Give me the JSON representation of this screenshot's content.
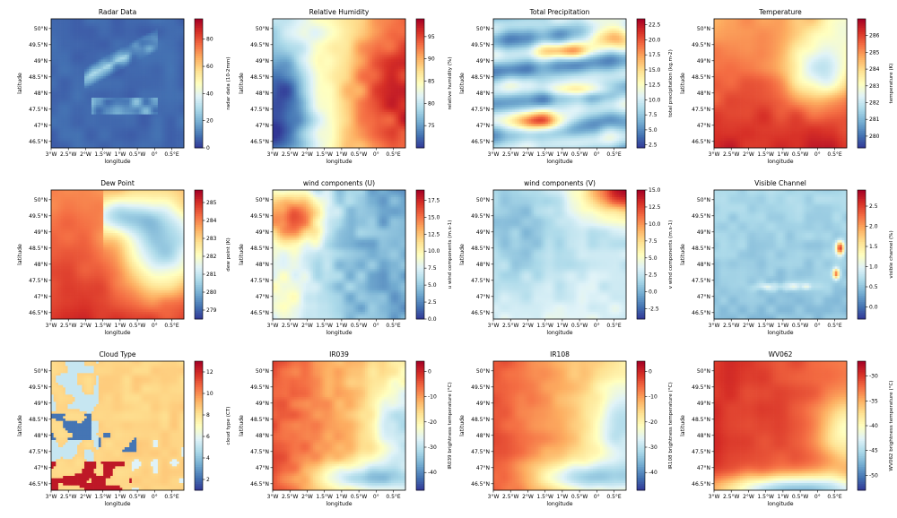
{
  "chart_data": [
    {
      "type": "heatmap",
      "title": "Radar Data",
      "colorbar_label": "radar data (10-2mm)",
      "colorbar_ticks": [
        "0",
        "20",
        "40",
        "60",
        "80"
      ],
      "colorbar_range": [
        0,
        95
      ],
      "pattern": "radar"
    },
    {
      "type": "heatmap",
      "title": "Relative Humidity",
      "colorbar_label": "relative humidity (%)",
      "colorbar_ticks": [
        "75",
        "80",
        "85",
        "90",
        "95"
      ],
      "colorbar_range": [
        70,
        99
      ],
      "pattern": "rh"
    },
    {
      "type": "heatmap",
      "title": "Total Precipitation",
      "colorbar_label": "total precipitation (kg.m-2)",
      "colorbar_ticks": [
        "2.5",
        "5.0",
        "7.5",
        "10.0",
        "12.5",
        "15.0",
        "17.5",
        "20.0",
        "22.5"
      ],
      "colorbar_range": [
        2,
        23.5
      ],
      "pattern": "precip"
    },
    {
      "type": "heatmap",
      "title": "Temperature",
      "colorbar_label": "temperature (K)",
      "colorbar_ticks": [
        "280",
        "281",
        "282",
        "283",
        "284",
        "285",
        "286"
      ],
      "colorbar_range": [
        279.3,
        287
      ],
      "pattern": "temp"
    },
    {
      "type": "heatmap",
      "title": "Dew Point",
      "colorbar_label": "dew point (K)",
      "colorbar_ticks": [
        "279",
        "280",
        "281",
        "282",
        "283",
        "284",
        "285"
      ],
      "colorbar_range": [
        278.5,
        285.7
      ],
      "pattern": "dew"
    },
    {
      "type": "heatmap",
      "title": "wind components (U)",
      "colorbar_label": "u wind components (m.s-1)",
      "colorbar_ticks": [
        "0.0",
        "2.5",
        "5.0",
        "7.5",
        "10.0",
        "12.5",
        "15.0",
        "17.5"
      ],
      "colorbar_range": [
        0,
        19
      ],
      "pattern": "windu"
    },
    {
      "type": "heatmap",
      "title": "wind components (V)",
      "colorbar_label": "v wind components (m.s-1)",
      "colorbar_ticks": [
        "-2.5",
        "0.0",
        "2.5",
        "5.0",
        "7.5",
        "10.0",
        "12.5",
        "15.0"
      ],
      "colorbar_range": [
        -4,
        15
      ],
      "pattern": "windv"
    },
    {
      "type": "heatmap",
      "title": "Visible Channel",
      "colorbar_label": "visible channel (%)",
      "colorbar_ticks": [
        "0.0",
        "0.5",
        "1.0",
        "1.5",
        "2.0",
        "2.5"
      ],
      "colorbar_range": [
        -0.3,
        2.9
      ],
      "pattern": "vis"
    },
    {
      "type": "heatmap",
      "title": "Cloud Type",
      "colorbar_label": "cloud type (CT)",
      "colorbar_ticks": [
        "2",
        "4",
        "6",
        "8",
        "10",
        "12"
      ],
      "colorbar_range": [
        1,
        13
      ],
      "pattern": "cloud"
    },
    {
      "type": "heatmap",
      "title": "IR039",
      "colorbar_label": "IR039 brightness temperature (°C)",
      "colorbar_ticks": [
        "-40",
        "-30",
        "-20",
        "-10",
        "0"
      ],
      "colorbar_range": [
        -47,
        4
      ],
      "pattern": "ir039"
    },
    {
      "type": "heatmap",
      "title": "IR108",
      "colorbar_label": "IR108 brightness temperature (°C)",
      "colorbar_ticks": [
        "-40",
        "-30",
        "-20",
        "-10",
        "0"
      ],
      "colorbar_range": [
        -47,
        4
      ],
      "pattern": "ir108"
    },
    {
      "type": "heatmap",
      "title": "WV062",
      "colorbar_label": "WV062 brightness temperature (°C)",
      "colorbar_ticks": [
        "-50",
        "-45",
        "-40",
        "-35",
        "-30"
      ],
      "colorbar_range": [
        -53,
        -27
      ],
      "pattern": "wv062"
    }
  ],
  "common": {
    "xlabel": "longitude",
    "ylabel": "latitude",
    "x_ticks": [
      "3°W",
      "2.5°W",
      "2°W",
      "1.5°W",
      "1°W",
      "0.5°W",
      "0°",
      "0.5°E"
    ],
    "y_ticks": [
      "50°N",
      "49.5°N",
      "49°N",
      "48.5°N",
      "48°N",
      "47.5°N",
      "47°N",
      "46.5°N"
    ],
    "x_range": [
      -3,
      0.85
    ],
    "y_range": [
      46.3,
      50.3
    ],
    "colormap": [
      "#313695",
      "#4575b4",
      "#74add1",
      "#abd9e9",
      "#e0f3f8",
      "#ffffbf",
      "#fee090",
      "#fdae61",
      "#f46d43",
      "#d73027",
      "#a50026"
    ],
    "coastline_color": "#111111"
  }
}
